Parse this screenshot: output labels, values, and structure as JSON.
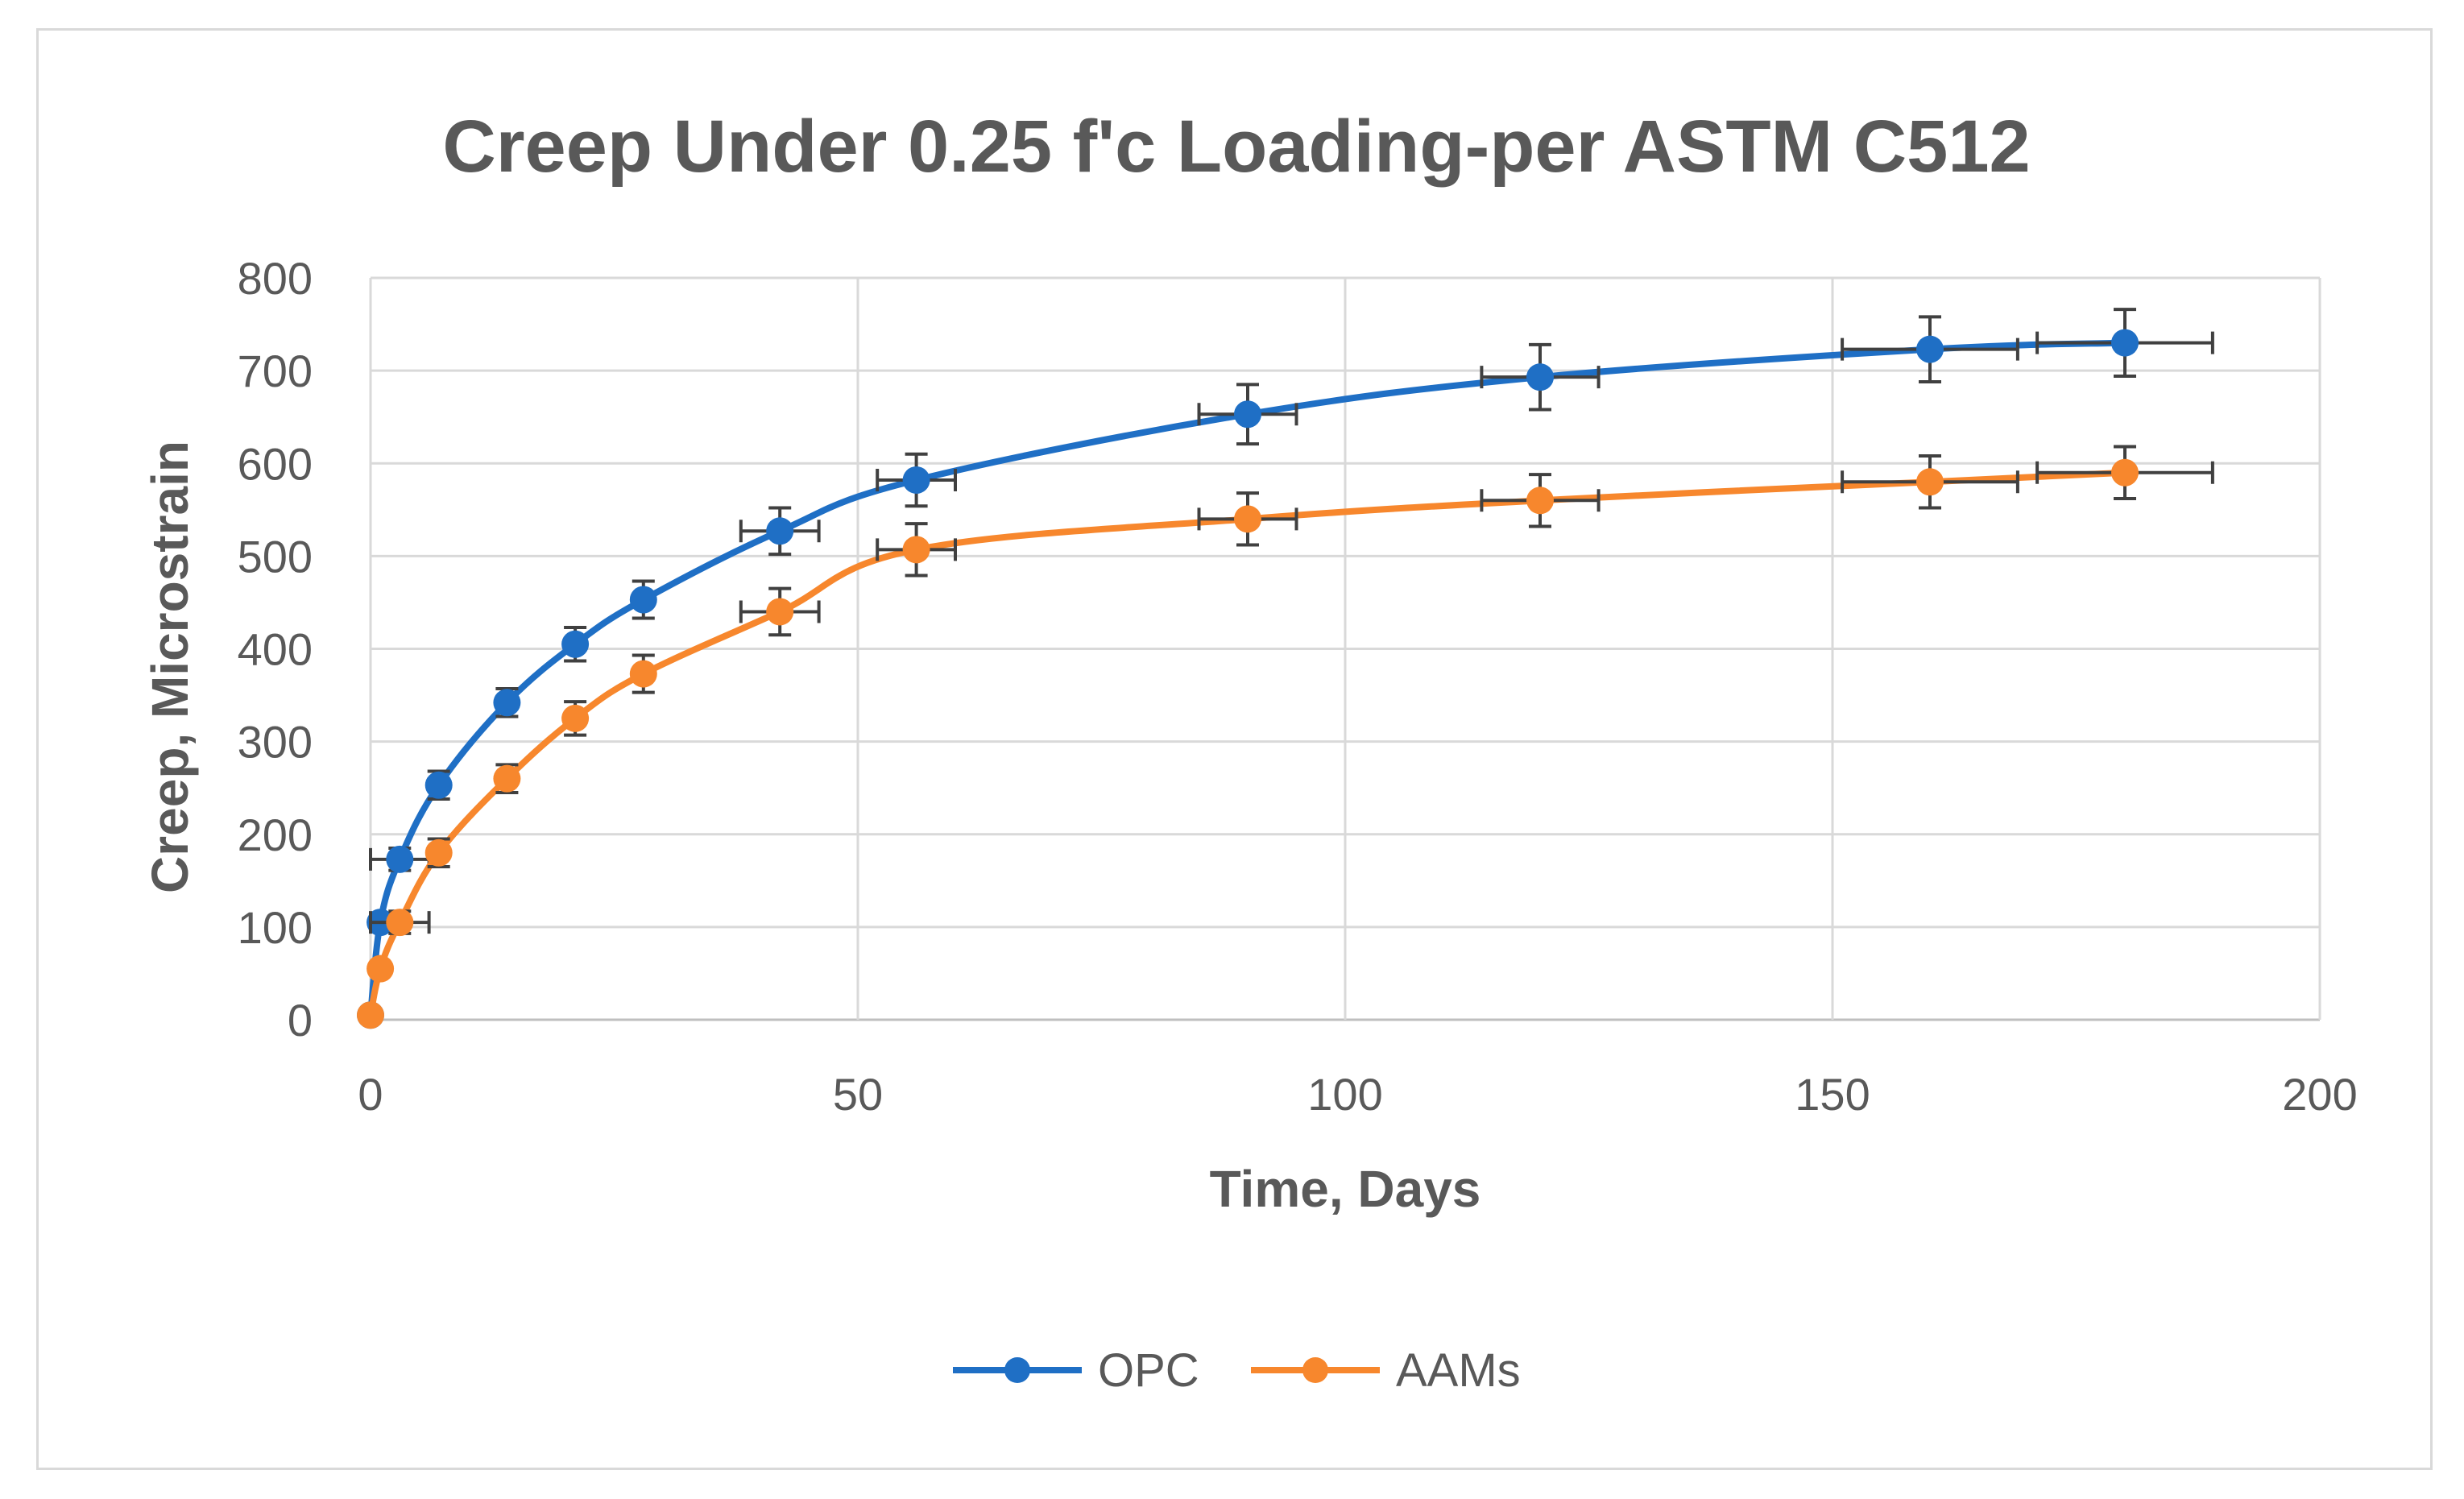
{
  "chart_data": {
    "type": "line",
    "title": "Creep Under 0.25 f'c Loading-per ASTM C512",
    "xlabel": "Time, Days",
    "ylabel": "Creep, Microstrain",
    "xlim": [
      0,
      200
    ],
    "ylim": [
      0,
      800
    ],
    "x_ticks": [
      "0",
      "50",
      "100",
      "150",
      "200"
    ],
    "y_ticks": [
      "0",
      "100",
      "200",
      "300",
      "400",
      "500",
      "600",
      "700",
      "800"
    ],
    "grid": true,
    "legend_position": "bottom",
    "series": [
      {
        "name": "OPC",
        "color": "#1f6fc5",
        "x": [
          0,
          1,
          3,
          7,
          14,
          21,
          28,
          42,
          56,
          90,
          120,
          160,
          180
        ],
        "values": [
          5,
          105,
          173,
          253,
          342,
          405,
          453,
          527,
          582,
          653,
          693,
          723,
          730
        ],
        "y_error": [
          0,
          0,
          12,
          15,
          15,
          18,
          20,
          25,
          28,
          32,
          35,
          35,
          36
        ],
        "x_error": [
          0,
          0,
          3,
          0,
          0,
          0,
          0,
          4,
          4,
          5,
          6,
          9,
          9
        ]
      },
      {
        "name": "AAMs",
        "color": "#f7872d",
        "x": [
          0,
          1,
          3,
          7,
          14,
          21,
          28,
          42,
          56,
          90,
          120,
          160,
          180
        ],
        "values": [
          5,
          55,
          105,
          180,
          260,
          325,
          373,
          440,
          507,
          540,
          560,
          580,
          590
        ],
        "y_error": [
          0,
          0,
          12,
          15,
          15,
          18,
          20,
          25,
          28,
          28,
          28,
          28,
          28
        ],
        "x_error": [
          0,
          0,
          3,
          0,
          0,
          0,
          0,
          4,
          4,
          5,
          6,
          9,
          9
        ]
      }
    ]
  }
}
